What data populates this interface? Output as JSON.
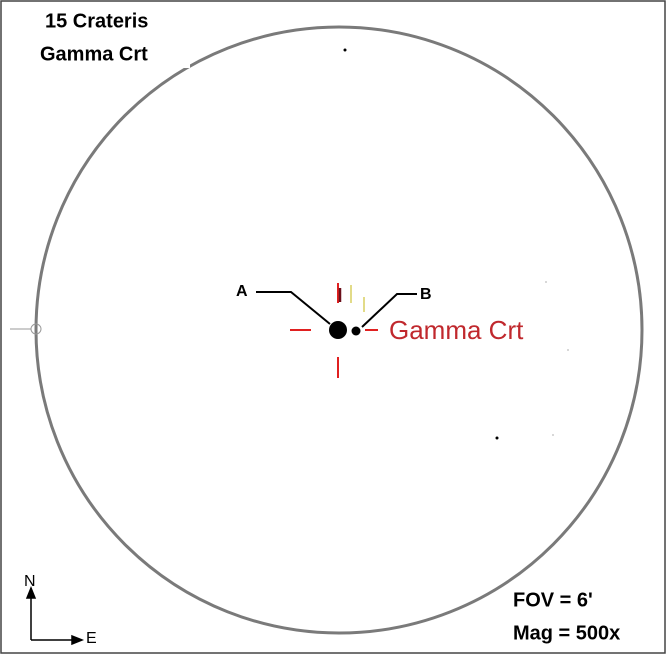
{
  "header": {
    "name": "15 Crateris",
    "designation": "Gamma Crt"
  },
  "stars": {
    "primary": "A",
    "secondary": "B",
    "target_label": "Gamma Crt"
  },
  "compass": {
    "north": "N",
    "east": "E"
  },
  "info": {
    "fov": "FOV = 6'",
    "magnification": "Mag = 500x"
  }
}
